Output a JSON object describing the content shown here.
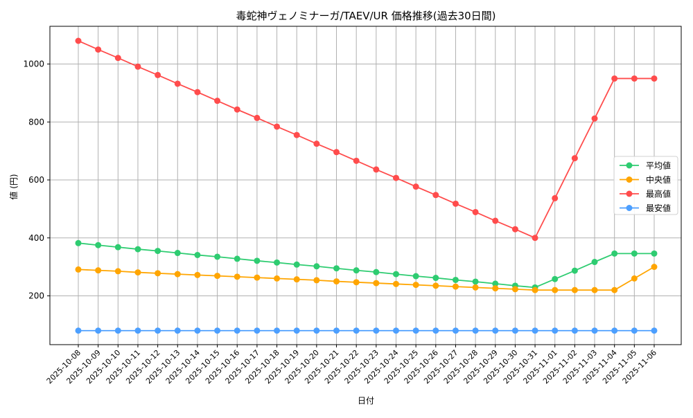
{
  "chart_data": {
    "type": "line",
    "title": "毒蛇神ヴェノミナーガ/TAEV/UR 価格推移(過去30日間)",
    "xlabel": "日付",
    "ylabel": "値 (円)",
    "ylim": [
      30,
      1125
    ],
    "yticks": [
      200,
      400,
      600,
      800,
      1000
    ],
    "grid": true,
    "legend_position": "center right",
    "categories": [
      "2025-10-08",
      "2025-10-09",
      "2025-10-10",
      "2025-10-11",
      "2025-10-12",
      "2025-10-13",
      "2025-10-14",
      "2025-10-15",
      "2025-10-16",
      "2025-10-17",
      "2025-10-18",
      "2025-10-19",
      "2025-10-20",
      "2025-10-21",
      "2025-10-22",
      "2025-10-23",
      "2025-10-24",
      "2025-10-25",
      "2025-10-26",
      "2025-10-27",
      "2025-10-28",
      "2025-10-29",
      "2025-10-30",
      "2025-10-31",
      "2025-11-01",
      "2025-11-02",
      "2025-11-03",
      "2025-11-04",
      "2025-11-05",
      "2025-11-06"
    ],
    "series": [
      {
        "name": "平均値",
        "color": "#2ecc71",
        "values": [
          382,
          375,
          368,
          361,
          355,
          348,
          341,
          335,
          328,
          321,
          315,
          308,
          302,
          295,
          288,
          282,
          275,
          268,
          262,
          255,
          249,
          242,
          235,
          229,
          258,
          287,
          317,
          346,
          346,
          346
        ]
      },
      {
        "name": "中央値",
        "color": "#ffa500",
        "values": [
          291,
          288,
          285,
          281,
          278,
          275,
          272,
          269,
          266,
          263,
          260,
          257,
          254,
          250,
          247,
          244,
          241,
          238,
          235,
          232,
          229,
          226,
          223,
          220,
          220,
          220,
          220,
          220,
          260,
          300
        ]
      },
      {
        "name": "最高値",
        "color": "#ff4c4c",
        "values": [
          1080,
          1050,
          1021,
          991,
          962,
          932,
          903,
          873,
          843,
          814,
          784,
          755,
          725,
          696,
          666,
          636,
          607,
          577,
          548,
          518,
          489,
          459,
          430,
          400,
          537,
          675,
          812,
          950,
          950,
          950
        ]
      },
      {
        "name": "最安値",
        "color": "#4c9fff",
        "values": [
          80,
          80,
          80,
          80,
          80,
          80,
          80,
          80,
          80,
          80,
          80,
          80,
          80,
          80,
          80,
          80,
          80,
          80,
          80,
          80,
          80,
          80,
          80,
          80,
          80,
          80,
          80,
          80,
          80,
          80
        ]
      }
    ]
  }
}
